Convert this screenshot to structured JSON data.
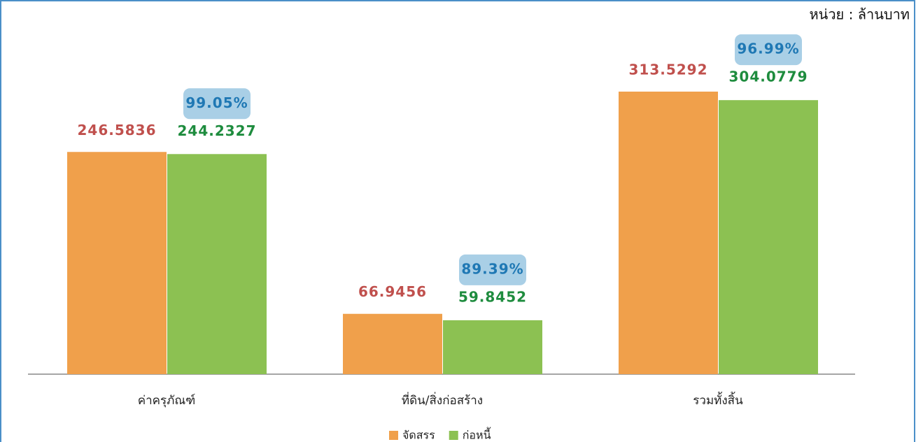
{
  "chart_data": {
    "type": "bar",
    "unit_label": "หน่วย : ล้านบาท",
    "categories": [
      "ค่าครุภัณฑ์",
      "ที่ดิน/สิ่งก่อสร้าง",
      "รวมทั้งสิ้น"
    ],
    "series": [
      {
        "name": "จัดสรร",
        "color": "#f0a04b",
        "label_color": "#c0504d",
        "values": [
          246.5836,
          66.9456,
          313.5292
        ]
      },
      {
        "name": "ก่อหนี้",
        "color": "#8cc152",
        "label_color": "#1e8c3e",
        "values": [
          244.2327,
          59.8452,
          304.0779
        ]
      }
    ],
    "annotations": [
      "99.05%",
      "89.39%",
      "96.99%"
    ],
    "ylim": [
      0,
      350
    ],
    "legend": "bottom"
  }
}
